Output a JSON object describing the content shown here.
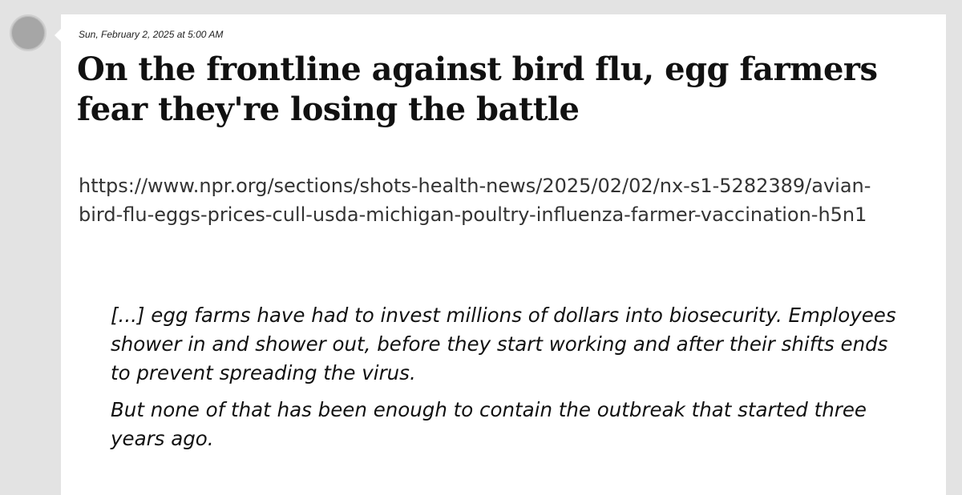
{
  "post": {
    "timestamp": "Sun, February 2, 2025 at 5:00 AM",
    "headline": "On the frontline against bird flu, egg farmers fear they're losing the battle",
    "url": "https://www.npr.org/sections/shots-health-news/2025/02/02/nx-s1-5282389/avian-bird-flu-eggs-prices-cull-usda-michigan-poultry-influenza-farmer-vaccination-h5n1",
    "quote_paragraphs": [
      "[...] egg farms have had to invest millions of dollars into biosecurity. Employees shower in and shower out, before they start working and after their shifts ends to prevent spreading the virus.",
      "But none of that has been enough to contain the outbreak that started three years ago."
    ]
  },
  "colors": {
    "page_background": "#e3e3e3",
    "card_background": "#ffffff",
    "avatar": "#a6a6a6"
  }
}
